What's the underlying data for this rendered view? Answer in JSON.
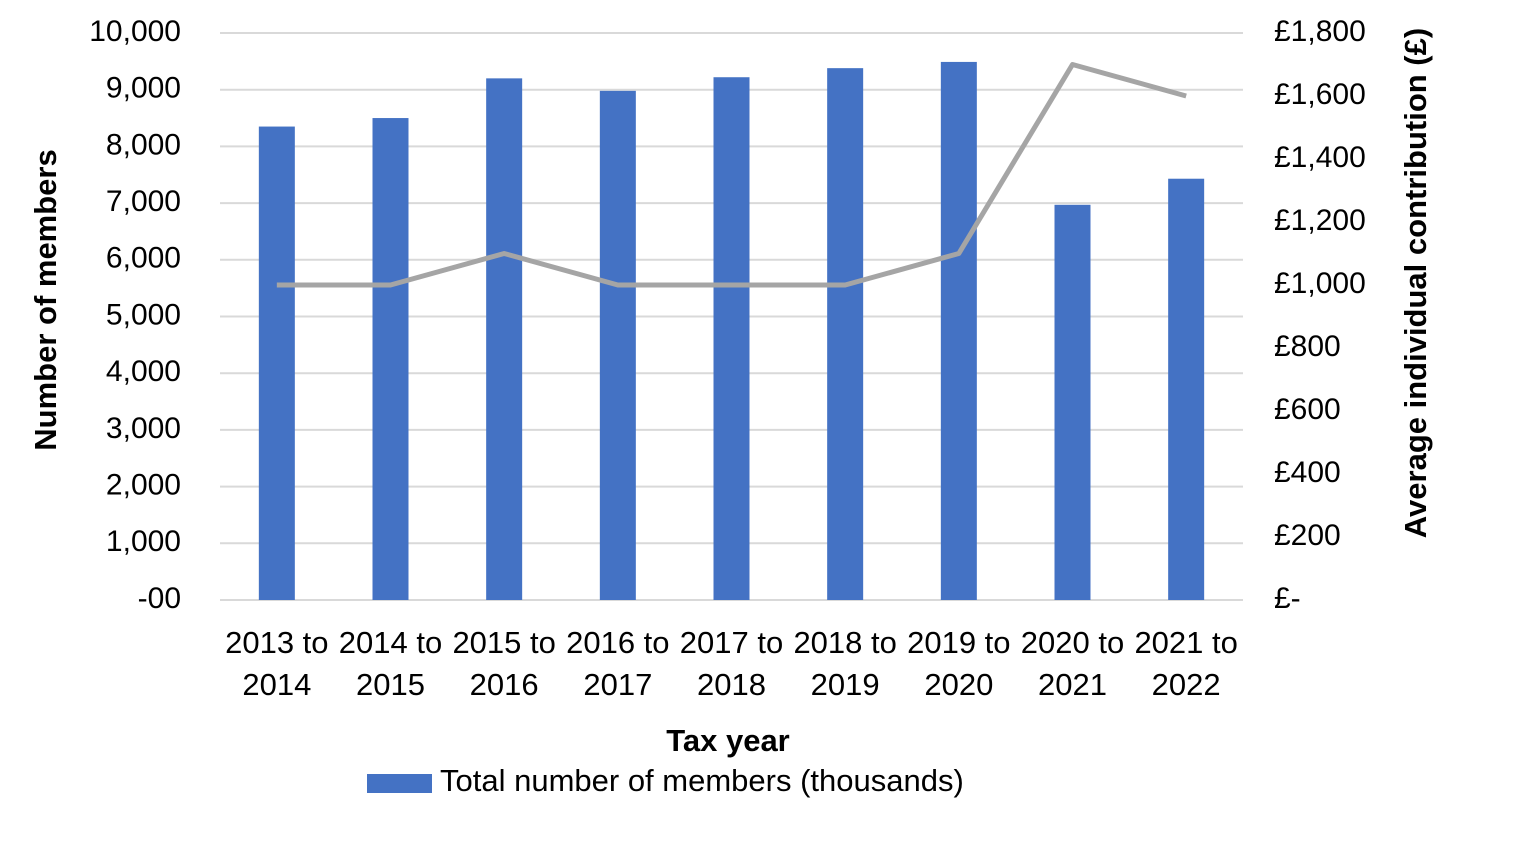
{
  "chart_data": {
    "type": "bar",
    "x_label": "Tax year",
    "y_label": "Number of members",
    "y2_label": "Average individual contribution (£)",
    "categories": [
      "2013 to 2014",
      "2014 to 2015",
      "2015 to 2016",
      "2016 to 2017",
      "2017 to 2018",
      "2018 to 2019",
      "2019 to 2020",
      "2020 to 2021",
      "2021 to 2022"
    ],
    "series": [
      {
        "name": "Total number of members (thousands)",
        "type": "bar",
        "color": "#4472c4",
        "values": [
          8350,
          8500,
          9200,
          8980,
          9220,
          9380,
          9490,
          6970,
          7430
        ]
      },
      {
        "type": "line",
        "color": "#a5a5a5",
        "axis": "y2",
        "values": [
          1000,
          1000,
          1100,
          1000,
          1000,
          1000,
          1100,
          1700,
          1600
        ]
      }
    ],
    "ylim": [
      0,
      10000
    ],
    "yticks": [
      {
        "value": 0,
        "label": "-00"
      },
      {
        "value": 1000,
        "label": "1,000"
      },
      {
        "value": 2000,
        "label": "2,000"
      },
      {
        "value": 3000,
        "label": "3,000"
      },
      {
        "value": 4000,
        "label": "4,000"
      },
      {
        "value": 5000,
        "label": "5,000"
      },
      {
        "value": 6000,
        "label": "6,000"
      },
      {
        "value": 7000,
        "label": "7,000"
      },
      {
        "value": 8000,
        "label": "8,000"
      },
      {
        "value": 9000,
        "label": "9,000"
      },
      {
        "value": 10000,
        "label": "10,000"
      }
    ],
    "y2lim": [
      0,
      1800
    ],
    "y2ticks": [
      {
        "value": 0,
        "label": "£-"
      },
      {
        "value": 200,
        "label": "£200"
      },
      {
        "value": 400,
        "label": "£400"
      },
      {
        "value": 600,
        "label": "£600"
      },
      {
        "value": 800,
        "label": "£800"
      },
      {
        "value": 1000,
        "label": "£1,000"
      },
      {
        "value": 1200,
        "label": "£1,200"
      },
      {
        "value": 1400,
        "label": "£1,400"
      },
      {
        "value": 1600,
        "label": "£1,600"
      },
      {
        "value": 1800,
        "label": "£1,800"
      }
    ],
    "grid": true,
    "legend": "bottom"
  }
}
